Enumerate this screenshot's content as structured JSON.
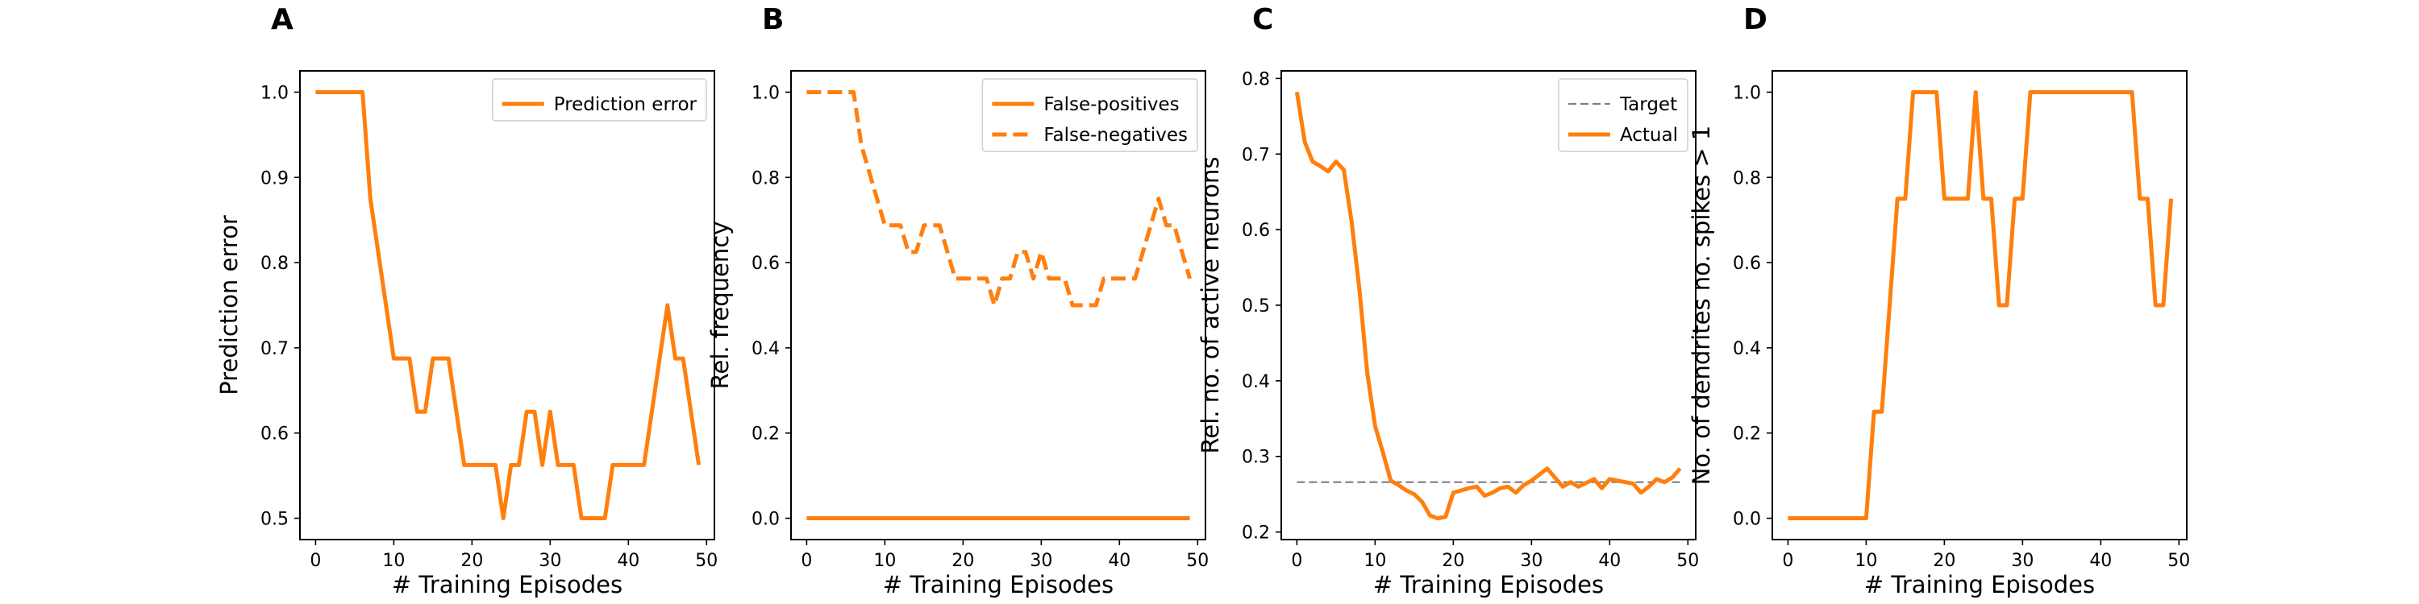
{
  "chart_data": [
    {
      "panel": "A",
      "type": "line",
      "xlabel": "# Training Episodes",
      "ylabel": "Prediction error",
      "xlim": [
        -2,
        51
      ],
      "ylim": [
        0.475,
        1.025
      ],
      "xticks": [
        0,
        10,
        20,
        30,
        40,
        50
      ],
      "yticks": [
        0.5,
        0.6,
        0.7,
        0.8,
        0.9,
        1.0
      ],
      "ytick_format": "1",
      "legend_position": "top-right",
      "series": [
        {
          "name": "Prediction error",
          "color": "#ff7f0e",
          "style": "solid",
          "x": [
            0,
            1,
            2,
            3,
            4,
            5,
            6,
            7,
            8,
            9,
            10,
            11,
            12,
            13,
            14,
            15,
            16,
            17,
            18,
            19,
            20,
            21,
            22,
            23,
            24,
            25,
            26,
            27,
            28,
            29,
            30,
            31,
            32,
            33,
            34,
            35,
            36,
            37,
            38,
            39,
            40,
            41,
            42,
            43,
            44,
            45,
            46,
            47,
            48,
            49
          ],
          "y": [
            1.0,
            1.0,
            1.0,
            1.0,
            1.0,
            1.0,
            1.0,
            0.875,
            0.8125,
            0.75,
            0.6875,
            0.6875,
            0.6875,
            0.625,
            0.625,
            0.6875,
            0.6875,
            0.6875,
            0.625,
            0.5625,
            0.5625,
            0.5625,
            0.5625,
            0.5625,
            0.5,
            0.5625,
            0.5625,
            0.625,
            0.625,
            0.5625,
            0.625,
            0.5625,
            0.5625,
            0.5625,
            0.5,
            0.5,
            0.5,
            0.5,
            0.5625,
            0.5625,
            0.5625,
            0.5625,
            0.5625,
            0.625,
            0.6875,
            0.75,
            0.6875,
            0.6875,
            0.625,
            0.5625
          ]
        }
      ]
    },
    {
      "panel": "B",
      "type": "line",
      "xlabel": "# Training Episodes",
      "ylabel": "Rel. frequency",
      "xlim": [
        -2,
        51
      ],
      "ylim": [
        -0.05,
        1.05
      ],
      "xticks": [
        0,
        10,
        20,
        30,
        40,
        50
      ],
      "yticks": [
        0.0,
        0.2,
        0.4,
        0.6,
        0.8,
        1.0
      ],
      "ytick_format": "1",
      "legend_position": "top-right",
      "series": [
        {
          "name": "False-positives",
          "color": "#ff7f0e",
          "style": "solid",
          "x": [
            0,
            1,
            2,
            3,
            4,
            5,
            6,
            7,
            8,
            9,
            10,
            11,
            12,
            13,
            14,
            15,
            16,
            17,
            18,
            19,
            20,
            21,
            22,
            23,
            24,
            25,
            26,
            27,
            28,
            29,
            30,
            31,
            32,
            33,
            34,
            35,
            36,
            37,
            38,
            39,
            40,
            41,
            42,
            43,
            44,
            45,
            46,
            47,
            48,
            49
          ],
          "y": [
            0,
            0,
            0,
            0,
            0,
            0,
            0,
            0,
            0,
            0,
            0,
            0,
            0,
            0,
            0,
            0,
            0,
            0,
            0,
            0,
            0,
            0,
            0,
            0,
            0,
            0,
            0,
            0,
            0,
            0,
            0,
            0,
            0,
            0,
            0,
            0,
            0,
            0,
            0,
            0,
            0,
            0,
            0,
            0,
            0,
            0,
            0,
            0,
            0,
            0
          ]
        },
        {
          "name": "False-negatives",
          "color": "#ff7f0e",
          "style": "dashed",
          "x": [
            0,
            1,
            2,
            3,
            4,
            5,
            6,
            7,
            8,
            9,
            10,
            11,
            12,
            13,
            14,
            15,
            16,
            17,
            18,
            19,
            20,
            21,
            22,
            23,
            24,
            25,
            26,
            27,
            28,
            29,
            30,
            31,
            32,
            33,
            34,
            35,
            36,
            37,
            38,
            39,
            40,
            41,
            42,
            43,
            44,
            45,
            46,
            47,
            48,
            49
          ],
          "y": [
            1.0,
            1.0,
            1.0,
            1.0,
            1.0,
            1.0,
            1.0,
            0.875,
            0.8125,
            0.75,
            0.6875,
            0.6875,
            0.6875,
            0.625,
            0.625,
            0.6875,
            0.6875,
            0.6875,
            0.625,
            0.5625,
            0.5625,
            0.5625,
            0.5625,
            0.5625,
            0.5,
            0.5625,
            0.5625,
            0.625,
            0.625,
            0.5625,
            0.625,
            0.5625,
            0.5625,
            0.5625,
            0.5,
            0.5,
            0.5,
            0.5,
            0.5625,
            0.5625,
            0.5625,
            0.5625,
            0.5625,
            0.625,
            0.6875,
            0.75,
            0.6875,
            0.6875,
            0.625,
            0.5625
          ]
        }
      ]
    },
    {
      "panel": "C",
      "type": "line",
      "xlabel": "# Training Episodes",
      "ylabel": "Rel. no. of active neurons",
      "xlim": [
        -2,
        51
      ],
      "ylim": [
        0.19,
        0.81
      ],
      "xticks": [
        0,
        10,
        20,
        30,
        40,
        50
      ],
      "yticks": [
        0.2,
        0.3,
        0.4,
        0.5,
        0.6,
        0.7,
        0.8
      ],
      "ytick_format": "1",
      "legend_position": "top-right",
      "series": [
        {
          "name": "Target",
          "color": "#7f7f7f",
          "style": "dashed",
          "x": [
            0,
            49
          ],
          "y": [
            0.266,
            0.266
          ]
        },
        {
          "name": "Actual",
          "color": "#ff7f0e",
          "style": "solid",
          "x": [
            0,
            1,
            2,
            3,
            4,
            5,
            6,
            7,
            8,
            9,
            10,
            11,
            12,
            13,
            14,
            15,
            16,
            17,
            18,
            19,
            20,
            21,
            22,
            23,
            24,
            25,
            26,
            27,
            28,
            29,
            30,
            31,
            32,
            33,
            34,
            35,
            36,
            37,
            38,
            39,
            40,
            41,
            42,
            43,
            44,
            45,
            46,
            47,
            48,
            49
          ],
          "y": [
            0.782,
            0.716,
            0.69,
            0.684,
            0.677,
            0.69,
            0.679,
            0.61,
            0.52,
            0.41,
            0.34,
            0.305,
            0.268,
            0.262,
            0.255,
            0.25,
            0.24,
            0.222,
            0.218,
            0.22,
            0.252,
            0.255,
            0.258,
            0.26,
            0.248,
            0.252,
            0.258,
            0.26,
            0.252,
            0.262,
            0.268,
            0.276,
            0.284,
            0.272,
            0.26,
            0.266,
            0.26,
            0.265,
            0.27,
            0.258,
            0.27,
            0.268,
            0.266,
            0.264,
            0.252,
            0.26,
            0.27,
            0.266,
            0.272,
            0.284
          ]
        }
      ]
    },
    {
      "panel": "D",
      "type": "line",
      "xlabel": "# Training Episodes",
      "ylabel": "No. of dendrites no. spikes > 1",
      "xlim": [
        -2,
        51
      ],
      "ylim": [
        -0.05,
        1.05
      ],
      "xticks": [
        0,
        10,
        20,
        30,
        40,
        50
      ],
      "yticks": [
        0.0,
        0.2,
        0.4,
        0.6,
        0.8,
        1.0
      ],
      "ytick_format": "1",
      "legend_position": "none",
      "series": [
        {
          "color": "#ff7f0e",
          "style": "solid",
          "x": [
            0,
            1,
            2,
            3,
            4,
            5,
            6,
            7,
            8,
            9,
            10,
            11,
            12,
            13,
            14,
            15,
            16,
            17,
            18,
            19,
            20,
            21,
            22,
            23,
            24,
            25,
            26,
            27,
            28,
            29,
            30,
            31,
            32,
            33,
            34,
            35,
            36,
            37,
            38,
            39,
            40,
            41,
            42,
            43,
            44,
            45,
            46,
            47,
            48,
            49
          ],
          "y": [
            0,
            0,
            0,
            0,
            0,
            0,
            0,
            0,
            0,
            0,
            0,
            0.25,
            0.25,
            0.5,
            0.75,
            0.75,
            1.0,
            1.0,
            1.0,
            1.0,
            0.75,
            0.75,
            0.75,
            0.75,
            1.0,
            0.75,
            0.75,
            0.5,
            0.5,
            0.75,
            0.75,
            1.0,
            1.0,
            1.0,
            1.0,
            1.0,
            1.0,
            1.0,
            1.0,
            1.0,
            1.0,
            1.0,
            1.0,
            1.0,
            1.0,
            0.75,
            0.75,
            0.5,
            0.5,
            0.75
          ]
        }
      ]
    }
  ]
}
